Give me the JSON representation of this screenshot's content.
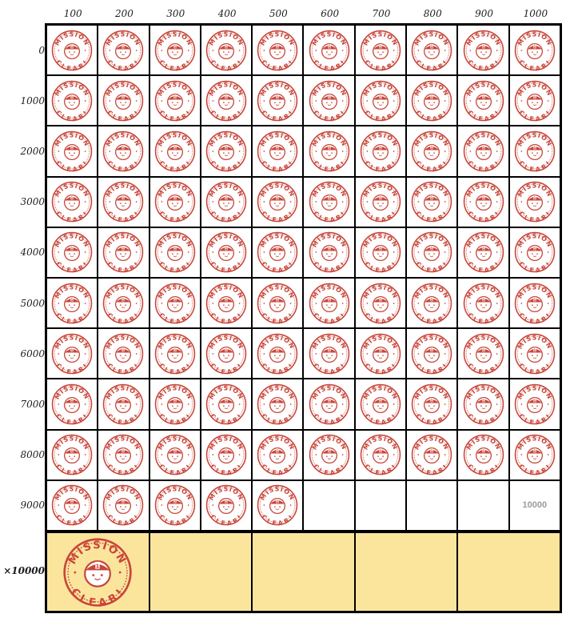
{
  "columns": [
    "100",
    "200",
    "300",
    "400",
    "500",
    "600",
    "700",
    "800",
    "900",
    "1000"
  ],
  "rows": [
    "0",
    "1000",
    "2000",
    "3000",
    "4000",
    "5000",
    "6000",
    "7000",
    "8000",
    "9000"
  ],
  "multiplier_label": "×10000",
  "stamp": {
    "top_text": "MISSION",
    "bottom_text": "CLEAR!",
    "color": "#c8463a"
  },
  "empty_cell_label": "10000",
  "filled_cells_in_last_row": 5,
  "bottom_panel_count": 5,
  "bottom_panel_filled": 1,
  "bottom_color": "#fbe59d"
}
